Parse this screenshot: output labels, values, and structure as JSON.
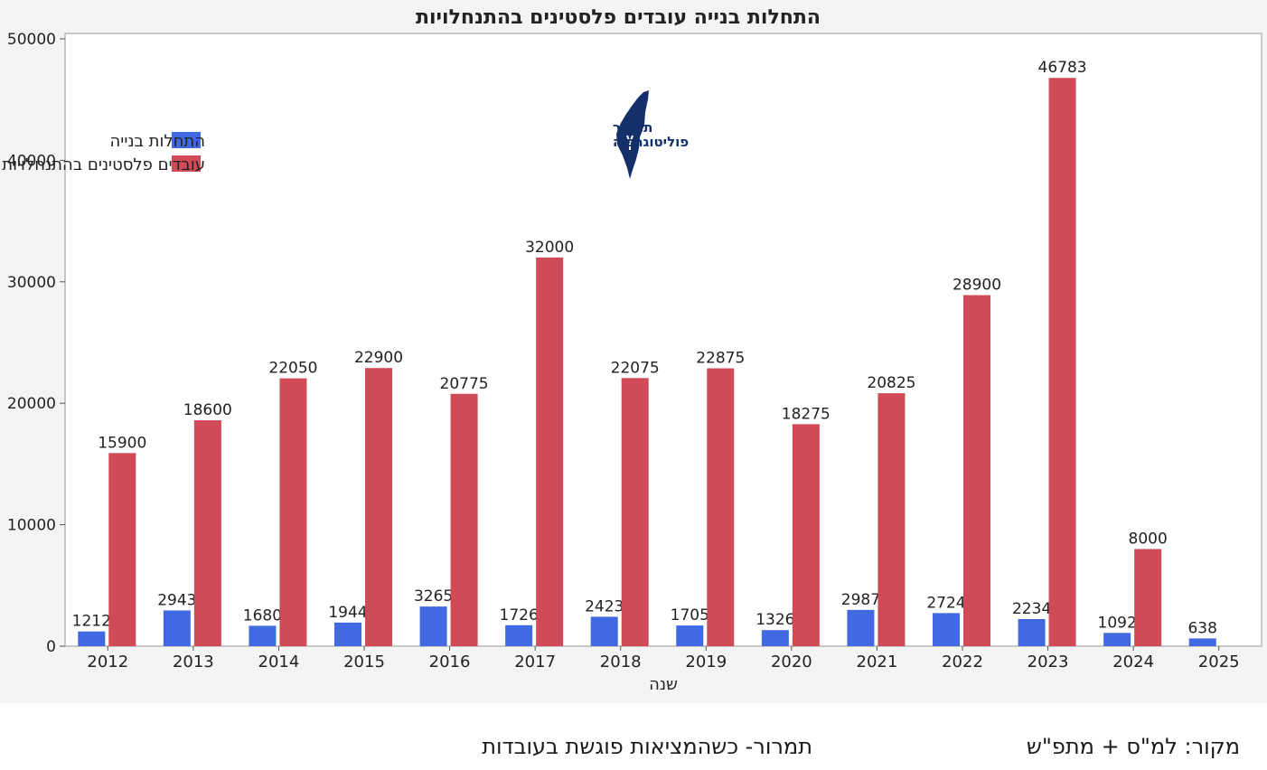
{
  "chart_data": {
    "type": "bar",
    "title": "התחלות בנייה  עובדים פלסטינים בהתנחלויות",
    "xlabel": "שנה",
    "ylabel": "",
    "ylim": [
      0,
      50000
    ],
    "yticks": [
      0,
      10000,
      20000,
      30000,
      40000,
      50000
    ],
    "categories": [
      "2012",
      "2013",
      "2014",
      "2015",
      "2016",
      "2017",
      "2018",
      "2019",
      "2020",
      "2021",
      "2022",
      "2023",
      "2024",
      "2025"
    ],
    "series": [
      {
        "name": "התחלות בנייה",
        "color": "#4169e1",
        "values": [
          1212,
          2943,
          1680,
          1944,
          3265,
          1726,
          2423,
          1705,
          1326,
          2987,
          2724,
          2234,
          1092,
          638
        ]
      },
      {
        "name": "עובדים פלסטינים בהתנחלויות",
        "color": "#d14a57",
        "values": [
          15900,
          18600,
          22050,
          22900,
          20775,
          32000,
          22075,
          22875,
          18275,
          20825,
          28900,
          46783,
          8000,
          null
        ]
      }
    ],
    "legend_position": "top-left",
    "grid": false
  },
  "logo": {
    "line1": "תמרור",
    "line2": "פוליטוגרפיה",
    "color": "#13306a"
  },
  "footer": {
    "source": "מקור: למ\"ס + מתפ\"ש",
    "slogan": "תמרור- כשהמציאות פוגשת בעובדות"
  }
}
